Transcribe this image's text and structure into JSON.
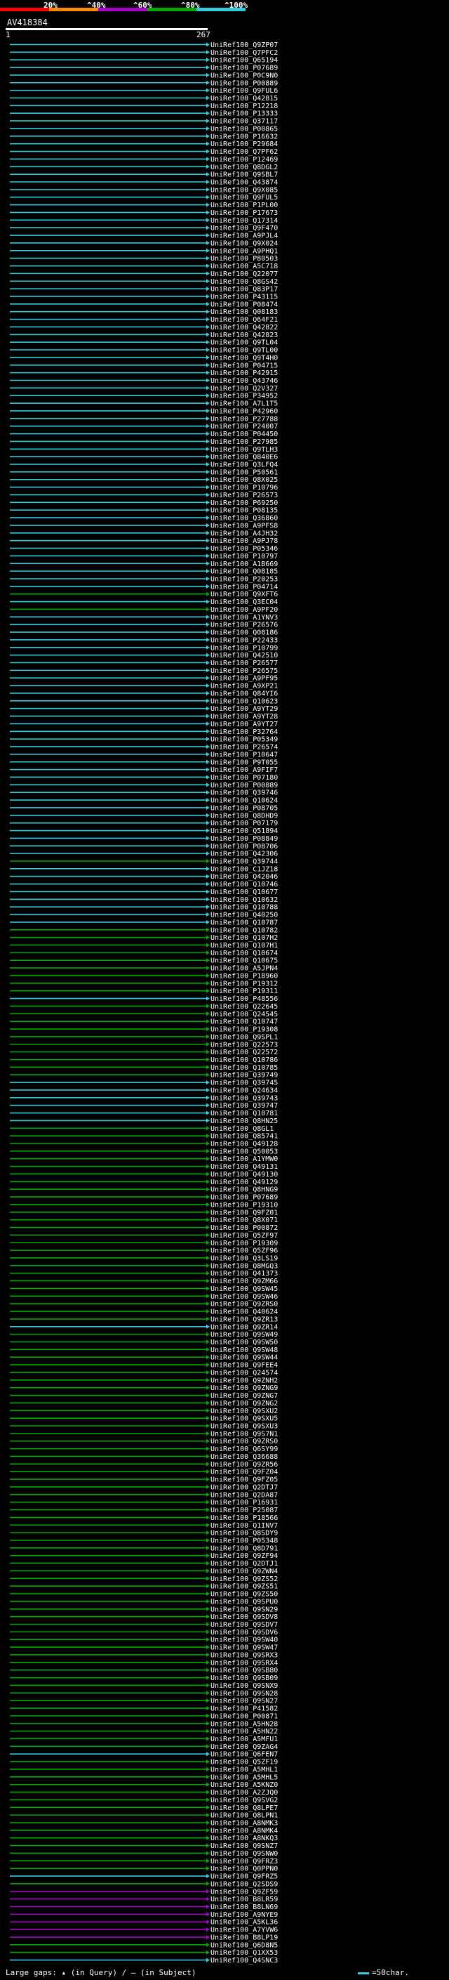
{
  "legend": {
    "ticks": [
      "20%",
      "^40%",
      "^60%",
      "^80%",
      "^100%"
    ],
    "colors": [
      "#ff0000",
      "#ff8800",
      "#aa00cc",
      "#00aa00",
      "#33ccdd"
    ]
  },
  "query": {
    "id": "AV418384",
    "start": "1",
    "end": "267"
  },
  "hits": [
    {
      "label": "UniRef100_Q9ZP07",
      "cls": "c"
    },
    {
      "label": "UniRef100_Q7PFC2",
      "cls": "c"
    },
    {
      "label": "UniRef100_Q65194",
      "cls": "c"
    },
    {
      "label": "UniRef100_P07689",
      "cls": "c"
    },
    {
      "label": "UniRef100_P0C9N0",
      "cls": "c"
    },
    {
      "label": "UniRef100_P00889",
      "cls": "c"
    },
    {
      "label": "UniRef100_Q9FUL6",
      "cls": "c"
    },
    {
      "label": "UniRef100_Q42815",
      "cls": "c"
    },
    {
      "label": "UniRef100_P12218",
      "cls": "c"
    },
    {
      "label": "UniRef100_P13333",
      "cls": "c"
    },
    {
      "label": "UniRef100_Q37117",
      "cls": "c"
    },
    {
      "label": "UniRef100_P00865",
      "cls": "c"
    },
    {
      "label": "UniRef100_P16632",
      "cls": "c"
    },
    {
      "label": "UniRef100_P29684",
      "cls": "c"
    },
    {
      "label": "UniRef100_Q7PF62",
      "cls": "c"
    },
    {
      "label": "UniRef100_P12469",
      "cls": "c"
    },
    {
      "label": "UniRef100_Q8DGL2",
      "cls": "c"
    },
    {
      "label": "UniRef100_Q9SBL7",
      "cls": "c"
    },
    {
      "label": "UniRef100_Q43874",
      "cls": "c"
    },
    {
      "label": "UniRef100_Q9X085",
      "cls": "c"
    },
    {
      "label": "UniRef100_Q9FUL5",
      "cls": "c"
    },
    {
      "label": "UniRef100_P1PL00",
      "cls": "c"
    },
    {
      "label": "UniRef100_P17673",
      "cls": "c"
    },
    {
      "label": "UniRef100_Q17314",
      "cls": "c"
    },
    {
      "label": "UniRef100_Q9F470",
      "cls": "c"
    },
    {
      "label": "UniRef100_A9PJL4",
      "cls": "c"
    },
    {
      "label": "UniRef100_Q9X024",
      "cls": "c"
    },
    {
      "label": "UniRef100_A9PHQ1",
      "cls": "c"
    },
    {
      "label": "UniRef100_P80503",
      "cls": "c"
    },
    {
      "label": "UniRef100_A5C718",
      "cls": "c"
    },
    {
      "label": "UniRef100_Q22077",
      "cls": "c"
    },
    {
      "label": "UniRef100_Q8GS42",
      "cls": "c"
    },
    {
      "label": "UniRef100_Q83P17",
      "cls": "c"
    },
    {
      "label": "UniRef100_P43115",
      "cls": "c"
    },
    {
      "label": "UniRef100_P08474",
      "cls": "c"
    },
    {
      "label": "UniRef100_Q08183",
      "cls": "c"
    },
    {
      "label": "UniRef100_Q64F21",
      "cls": "c"
    },
    {
      "label": "UniRef100_Q42822",
      "cls": "c"
    },
    {
      "label": "UniRef100_Q42823",
      "cls": "c"
    },
    {
      "label": "UniRef100_Q9TL04",
      "cls": "c"
    },
    {
      "label": "UniRef100_Q9TL00",
      "cls": "c"
    },
    {
      "label": "UniRef100_Q9T4H0",
      "cls": "c"
    },
    {
      "label": "UniRef100_P04715",
      "cls": "c"
    },
    {
      "label": "UniRef100_P42915",
      "cls": "c"
    },
    {
      "label": "UniRef100_Q43746",
      "cls": "c"
    },
    {
      "label": "UniRef100_Q2V327",
      "cls": "c"
    },
    {
      "label": "UniRef100_P34952",
      "cls": "c"
    },
    {
      "label": "UniRef100_A7L1T5",
      "cls": "c"
    },
    {
      "label": "UniRef100_P42960",
      "cls": "c"
    },
    {
      "label": "UniRef100_P27788",
      "cls": "c"
    },
    {
      "label": "UniRef100_P24007",
      "cls": "c"
    },
    {
      "label": "UniRef100_P04450",
      "cls": "c"
    },
    {
      "label": "UniRef100_P27985",
      "cls": "c"
    },
    {
      "label": "UniRef100_Q9TLH3",
      "cls": "c"
    },
    {
      "label": "UniRef100_Q840E6",
      "cls": "c"
    },
    {
      "label": "UniRef100_Q3LFQ4",
      "cls": "c"
    },
    {
      "label": "UniRef100_P50561",
      "cls": "c"
    },
    {
      "label": "UniRef100_Q8X025",
      "cls": "c"
    },
    {
      "label": "UniRef100_P10796",
      "cls": "c"
    },
    {
      "label": "UniRef100_P26573",
      "cls": "c"
    },
    {
      "label": "UniRef100_P69250",
      "cls": "c"
    },
    {
      "label": "UniRef100_P08135",
      "cls": "c"
    },
    {
      "label": "UniRef100_Q36860",
      "cls": "c"
    },
    {
      "label": "UniRef100_A9PFS8",
      "cls": "c"
    },
    {
      "label": "UniRef100_A4JH32",
      "cls": "c"
    },
    {
      "label": "UniRef100_A9PJ78",
      "cls": "c"
    },
    {
      "label": "UniRef100_P05346",
      "cls": "c"
    },
    {
      "label": "UniRef100_P10797",
      "cls": "c"
    },
    {
      "label": "UniRef100_A1B669",
      "cls": "c"
    },
    {
      "label": "UniRef100_Q08185",
      "cls": "c"
    },
    {
      "label": "UniRef100_P20253",
      "cls": "c"
    },
    {
      "label": "UniRef100_P04714",
      "cls": "c"
    },
    {
      "label": "UniRef100_Q9XFT6",
      "cls": "g"
    },
    {
      "label": "UniRef100_Q3EC04",
      "cls": "c"
    },
    {
      "label": "UniRef100_A9PF20",
      "cls": "g"
    },
    {
      "label": "UniRef100_A1YNV3",
      "cls": "c"
    },
    {
      "label": "UniRef100_P26576",
      "cls": "c"
    },
    {
      "label": "UniRef100_Q08186",
      "cls": "c"
    },
    {
      "label": "UniRef100_P22433",
      "cls": "c"
    },
    {
      "label": "UniRef100_P10799",
      "cls": "c"
    },
    {
      "label": "UniRef100_Q42510",
      "cls": "c"
    },
    {
      "label": "UniRef100_P26577",
      "cls": "c"
    },
    {
      "label": "UniRef100_P26575",
      "cls": "c"
    },
    {
      "label": "UniRef100_A9PF95",
      "cls": "c"
    },
    {
      "label": "UniRef100_A9XP21",
      "cls": "c"
    },
    {
      "label": "UniRef100_Q84YI6",
      "cls": "c"
    },
    {
      "label": "UniRef100_Q10623",
      "cls": "c"
    },
    {
      "label": "UniRef100_A9YT29",
      "cls": "c"
    },
    {
      "label": "UniRef100_A9YT28",
      "cls": "c"
    },
    {
      "label": "UniRef100_A9YT27",
      "cls": "c"
    },
    {
      "label": "UniRef100_P32764",
      "cls": "c"
    },
    {
      "label": "UniRef100_P05349",
      "cls": "c"
    },
    {
      "label": "UniRef100_P26574",
      "cls": "c"
    },
    {
      "label": "UniRef100_P10647",
      "cls": "c"
    },
    {
      "label": "UniRef100_P9T055",
      "cls": "c"
    },
    {
      "label": "UniRef100_A9FIF7",
      "cls": "c"
    },
    {
      "label": "UniRef100_P07180",
      "cls": "c"
    },
    {
      "label": "UniRef100_P00889",
      "cls": "c"
    },
    {
      "label": "UniRef100_Q39746",
      "cls": "c"
    },
    {
      "label": "UniRef100_Q10624",
      "cls": "c"
    },
    {
      "label": "UniRef100_P08705",
      "cls": "c"
    },
    {
      "label": "UniRef100_Q8DHD9",
      "cls": "c"
    },
    {
      "label": "UniRef100_P07179",
      "cls": "c"
    },
    {
      "label": "UniRef100_Q51894",
      "cls": "c"
    },
    {
      "label": "UniRef100_P08849",
      "cls": "c"
    },
    {
      "label": "UniRef100_P08706",
      "cls": "c"
    },
    {
      "label": "UniRef100_Q42306",
      "cls": "c"
    },
    {
      "label": "UniRef100_Q39744",
      "cls": "g"
    },
    {
      "label": "UniRef100_C1JZ18",
      "cls": "c"
    },
    {
      "label": "UniRef100_Q42046",
      "cls": "c"
    },
    {
      "label": "UniRef100_Q10746",
      "cls": "c"
    },
    {
      "label": "UniRef100_Q10677",
      "cls": "c"
    },
    {
      "label": "UniRef100_Q10632",
      "cls": "c"
    },
    {
      "label": "UniRef100_Q10788",
      "cls": "c"
    },
    {
      "label": "UniRef100_Q40250",
      "cls": "c"
    },
    {
      "label": "UniRef100_Q10787",
      "cls": "c"
    },
    {
      "label": "UniRef100_Q10782",
      "cls": "g"
    },
    {
      "label": "UniRef100_Q107H2",
      "cls": "g"
    },
    {
      "label": "UniRef100_Q107H1",
      "cls": "g"
    },
    {
      "label": "UniRef100_Q10674",
      "cls": "g"
    },
    {
      "label": "UniRef100_Q10675",
      "cls": "g"
    },
    {
      "label": "UniRef100_A5JPN4",
      "cls": "g"
    },
    {
      "label": "UniRef100_P18960",
      "cls": "g"
    },
    {
      "label": "UniRef100_P19312",
      "cls": "g"
    },
    {
      "label": "UniRef100_P19311",
      "cls": "g"
    },
    {
      "label": "UniRef100_P48556",
      "cls": "c"
    },
    {
      "label": "UniRef100_Q22645",
      "cls": "g"
    },
    {
      "label": "UniRef100_Q24545",
      "cls": "g"
    },
    {
      "label": "UniRef100_Q10747",
      "cls": "g"
    },
    {
      "label": "UniRef100_P19308",
      "cls": "g"
    },
    {
      "label": "UniRef100_Q9SPL1",
      "cls": "g"
    },
    {
      "label": "UniRef100_Q22573",
      "cls": "g"
    },
    {
      "label": "UniRef100_Q22572",
      "cls": "g"
    },
    {
      "label": "UniRef100_Q10786",
      "cls": "g"
    },
    {
      "label": "UniRef100_Q10785",
      "cls": "g"
    },
    {
      "label": "UniRef100_Q39749",
      "cls": "g"
    },
    {
      "label": "UniRef100_Q39745",
      "cls": "c"
    },
    {
      "label": "UniRef100_Q24634",
      "cls": "c"
    },
    {
      "label": "UniRef100_Q39743",
      "cls": "c"
    },
    {
      "label": "UniRef100_Q39747",
      "cls": "c"
    },
    {
      "label": "UniRef100_Q10781",
      "cls": "c"
    },
    {
      "label": "UniRef100_Q8HN25",
      "cls": "c"
    },
    {
      "label": "UniRef100_Q8GL1",
      "cls": "g"
    },
    {
      "label": "UniRef100_Q85741",
      "cls": "g"
    },
    {
      "label": "UniRef100_Q49128",
      "cls": "g"
    },
    {
      "label": "UniRef100_Q50053",
      "cls": "g"
    },
    {
      "label": "UniRef100_A1YMW0",
      "cls": "g"
    },
    {
      "label": "UniRef100_Q49131",
      "cls": "g"
    },
    {
      "label": "UniRef100_Q49130",
      "cls": "g"
    },
    {
      "label": "UniRef100_Q49129",
      "cls": "g"
    },
    {
      "label": "UniRef100_Q8HNG9",
      "cls": "g"
    },
    {
      "label": "UniRef100_P07689",
      "cls": "g"
    },
    {
      "label": "UniRef100_P19310",
      "cls": "g"
    },
    {
      "label": "UniRef100_Q9FZ01",
      "cls": "g"
    },
    {
      "label": "UniRef100_Q8X071",
      "cls": "g"
    },
    {
      "label": "UniRef100_P00872",
      "cls": "g"
    },
    {
      "label": "UniRef100_Q5ZF97",
      "cls": "g"
    },
    {
      "label": "UniRef100_P19309",
      "cls": "g"
    },
    {
      "label": "UniRef100_Q5ZF96",
      "cls": "g"
    },
    {
      "label": "UniRef100_Q3LS19",
      "cls": "g"
    },
    {
      "label": "UniRef100_Q8MGQ3",
      "cls": "g"
    },
    {
      "label": "UniRef100_Q41373",
      "cls": "g"
    },
    {
      "label": "UniRef100_Q9ZM66",
      "cls": "g"
    },
    {
      "label": "UniRef100_Q9SW45",
      "cls": "g"
    },
    {
      "label": "UniRef100_Q9SW46",
      "cls": "g"
    },
    {
      "label": "UniRef100_Q9ZRS0",
      "cls": "g"
    },
    {
      "label": "UniRef100_Q40624",
      "cls": "g"
    },
    {
      "label": "UniRef100_Q9ZR13",
      "cls": "g"
    },
    {
      "label": "UniRef100_Q9ZR14",
      "cls": "c"
    },
    {
      "label": "UniRef100_Q9SW49",
      "cls": "g"
    },
    {
      "label": "UniRef100_Q9SW50",
      "cls": "g"
    },
    {
      "label": "UniRef100_Q9SW48",
      "cls": "g"
    },
    {
      "label": "UniRef100_Q9SW44",
      "cls": "g"
    },
    {
      "label": "UniRef100_Q9FEE4",
      "cls": "g"
    },
    {
      "label": "UniRef100_Q24574",
      "cls": "g"
    },
    {
      "label": "UniRef100_Q9ZNH2",
      "cls": "g"
    },
    {
      "label": "UniRef100_Q9ZNG9",
      "cls": "g"
    },
    {
      "label": "UniRef100_Q9ZNG7",
      "cls": "g"
    },
    {
      "label": "UniRef100_Q9ZNG2",
      "cls": "g"
    },
    {
      "label": "UniRef100_Q9SXU2",
      "cls": "g"
    },
    {
      "label": "UniRef100_Q9SXU5",
      "cls": "g"
    },
    {
      "label": "UniRef100_Q9SXU3",
      "cls": "g"
    },
    {
      "label": "UniRef100_Q9S7N1",
      "cls": "g"
    },
    {
      "label": "UniRef100_Q9ZRS0",
      "cls": "g"
    },
    {
      "label": "UniRef100_Q6SY99",
      "cls": "g"
    },
    {
      "label": "UniRef100_Q36688",
      "cls": "g"
    },
    {
      "label": "UniRef100_Q9ZR56",
      "cls": "g"
    },
    {
      "label": "UniRef100_Q9FZ04",
      "cls": "g"
    },
    {
      "label": "UniRef100_Q9FZ05",
      "cls": "g"
    },
    {
      "label": "UniRef100_Q2DTJ7",
      "cls": "g"
    },
    {
      "label": "UniRef100_Q2DA87",
      "cls": "g"
    },
    {
      "label": "UniRef100_P16931",
      "cls": "g"
    },
    {
      "label": "UniRef100_P25087",
      "cls": "g"
    },
    {
      "label": "UniRef100_P18566",
      "cls": "g"
    },
    {
      "label": "UniRef100_Q1INV7",
      "cls": "g"
    },
    {
      "label": "UniRef100_Q8SDY9",
      "cls": "g"
    },
    {
      "label": "UniRef100_P05348",
      "cls": "g"
    },
    {
      "label": "UniRef100_Q8D791",
      "cls": "g"
    },
    {
      "label": "UniRef100_Q9ZF94",
      "cls": "g"
    },
    {
      "label": "UniRef100_Q2DTJ1",
      "cls": "g"
    },
    {
      "label": "UniRef100_Q9ZWN4",
      "cls": "g"
    },
    {
      "label": "UniRef100_Q9ZS52",
      "cls": "g"
    },
    {
      "label": "UniRef100_Q9ZS51",
      "cls": "g"
    },
    {
      "label": "UniRef100_Q9ZS50",
      "cls": "g"
    },
    {
      "label": "UniRef100_Q9SPU0",
      "cls": "g"
    },
    {
      "label": "UniRef100_Q9SN29",
      "cls": "g"
    },
    {
      "label": "UniRef100_Q9SDV8",
      "cls": "g"
    },
    {
      "label": "UniRef100_Q9SDV7",
      "cls": "g"
    },
    {
      "label": "UniRef100_Q9SDV6",
      "cls": "g"
    },
    {
      "label": "UniRef100_Q9SW40",
      "cls": "g"
    },
    {
      "label": "UniRef100_Q9SW47",
      "cls": "g"
    },
    {
      "label": "UniRef100_Q9SRX3",
      "cls": "g"
    },
    {
      "label": "UniRef100_Q9SRX4",
      "cls": "g"
    },
    {
      "label": "UniRef100_Q9SB80",
      "cls": "g"
    },
    {
      "label": "UniRef100_Q9SB09",
      "cls": "g"
    },
    {
      "label": "UniRef100_Q9SNX9",
      "cls": "g"
    },
    {
      "label": "UniRef100_Q9SN28",
      "cls": "g"
    },
    {
      "label": "UniRef100_Q9SN27",
      "cls": "g"
    },
    {
      "label": "UniRef100_P41582",
      "cls": "g"
    },
    {
      "label": "UniRef100_P00871",
      "cls": "g"
    },
    {
      "label": "UniRef100_A5HN28",
      "cls": "g"
    },
    {
      "label": "UniRef100_A5HN22",
      "cls": "g"
    },
    {
      "label": "UniRef100_A5MFU1",
      "cls": "g"
    },
    {
      "label": "UniRef100_Q9ZAG4",
      "cls": "g"
    },
    {
      "label": "UniRef100_Q6FEN7",
      "cls": "c"
    },
    {
      "label": "UniRef100_Q5ZF19",
      "cls": "g"
    },
    {
      "label": "UniRef100_A5MHL1",
      "cls": "g"
    },
    {
      "label": "UniRef100_A5MHL5",
      "cls": "g"
    },
    {
      "label": "UniRef100_A5KNZ0",
      "cls": "g"
    },
    {
      "label": "UniRef100_A2ZJQ0",
      "cls": "g"
    },
    {
      "label": "UniRef100_Q9SVG2",
      "cls": "g"
    },
    {
      "label": "UniRef100_Q8LPE7",
      "cls": "g"
    },
    {
      "label": "UniRef100_Q8LPN1",
      "cls": "g"
    },
    {
      "label": "UniRef100_A8NMK3",
      "cls": "g"
    },
    {
      "label": "UniRef100_A8NMK4",
      "cls": "g"
    },
    {
      "label": "UniRef100_A8NKQ3",
      "cls": "g"
    },
    {
      "label": "UniRef100_Q9SNZ7",
      "cls": "g"
    },
    {
      "label": "UniRef100_Q9SNW0",
      "cls": "g"
    },
    {
      "label": "UniRef100_Q9FRZ3",
      "cls": "g"
    },
    {
      "label": "UniRef100_Q0PPN0",
      "cls": "g"
    },
    {
      "label": "UniRef100_Q9FRZ5",
      "cls": "c"
    },
    {
      "label": "UniRef100_Q2SDS9",
      "cls": "g"
    },
    {
      "label": "UniRef100_Q9ZF59",
      "cls": "p"
    },
    {
      "label": "UniRef100_B8LR59",
      "cls": "p"
    },
    {
      "label": "UniRef100_B8LN69",
      "cls": "p"
    },
    {
      "label": "UniRef100_A9NYE9",
      "cls": "p"
    },
    {
      "label": "UniRef100_A5KL36",
      "cls": "p"
    },
    {
      "label": "UniRef100_A7YVW6",
      "cls": "p"
    },
    {
      "label": "UniRef100_B8LP19",
      "cls": "p"
    },
    {
      "label": "UniRef100_Q6D8N5",
      "cls": "g"
    },
    {
      "label": "UniRef100_Q1XX53",
      "cls": "g"
    },
    {
      "label": "UniRef100_Q4SNC3",
      "cls": "c"
    }
  ],
  "footer": {
    "gaps": "Large gaps:  ▴ (in Query) / – (in Subject)",
    "scale": "=50char."
  }
}
